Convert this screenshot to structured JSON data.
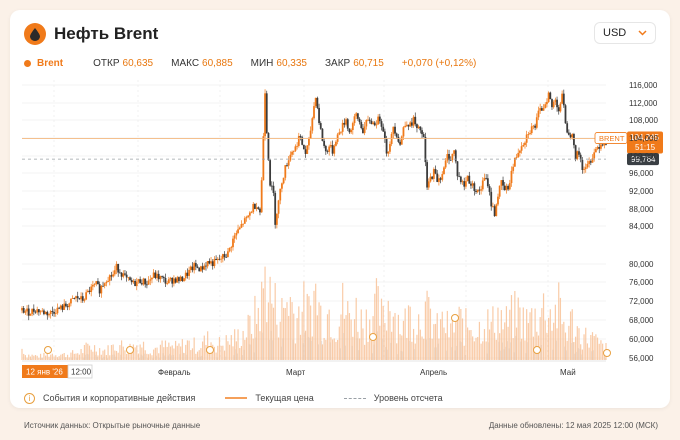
{
  "header": {
    "title": "Нефть Brent",
    "currency": "USD"
  },
  "stats": {
    "symbol": "Brent",
    "open_label": "ОТКР",
    "open_value": "60,635",
    "high_label": "МАКС",
    "high_value": "60,885",
    "low_label": "МИН",
    "low_value": "60,335",
    "close_label": "ЗАКР",
    "close_value": "60,715",
    "change": "+0,070 (+0,12%)"
  },
  "price_labels": {
    "series_name": "BRENT",
    "current_value": "104,245",
    "countdown": "51:15",
    "reference_value": "99,764"
  },
  "time_axis": {
    "selected_date": "12 янв '26",
    "selected_time": "12:00",
    "months": [
      "Февраль",
      "Март",
      "Апрель",
      "Май"
    ]
  },
  "legend": {
    "events": "События и корпоративные действия",
    "current_price": "Текущая цена",
    "reference_level": "Уровень отсчета"
  },
  "footer": {
    "source": "Источник данных: Открытые рыночные данные",
    "updated": "Данные обновлены: 12 мая 2025 12:00 (МСК)"
  },
  "colors": {
    "accent": "#f07a1a",
    "bull": "#f07a1a",
    "bear": "#3b3b3b",
    "volume": "#f7b98a",
    "reference": "#3a3f44"
  },
  "chart_data": {
    "type": "candlestick",
    "title": "Нефть Брент",
    "y_ticks": [
      "116,000",
      "112,000",
      "108,000",
      "104,000",
      "100,000",
      "96,000",
      "92,000",
      "88,000",
      "84,000",
      "80,000",
      "76,000",
      "72,000",
      "68,000",
      "60,000",
      "56,000"
    ],
    "y_range": [
      56,
      117
    ],
    "x_months": [
      "Февраль",
      "Март",
      "Апрель",
      "Май"
    ],
    "current_price": 104.245,
    "reference_level": 99.764,
    "close_path": [
      [
        0,
        66.8
      ],
      [
        4,
        66.4
      ],
      [
        8,
        67.0
      ],
      [
        12,
        66.5
      ],
      [
        16,
        66.1
      ],
      [
        20,
        66.9
      ],
      [
        24,
        67.4
      ],
      [
        28,
        68.3
      ],
      [
        32,
        69.6
      ],
      [
        36,
        69.1
      ],
      [
        40,
        71.2
      ],
      [
        44,
        72.4
      ],
      [
        46,
        71.3
      ],
      [
        50,
        73.8
      ],
      [
        54,
        74.6
      ],
      [
        56,
        76.2
      ],
      [
        58,
        75.4
      ],
      [
        62,
        73.5
      ],
      [
        66,
        72.6
      ],
      [
        70,
        73.3
      ],
      [
        74,
        72.8
      ],
      [
        78,
        74.4
      ],
      [
        82,
        73.9
      ],
      [
        86,
        72.9
      ],
      [
        90,
        73.6
      ],
      [
        94,
        73.4
      ],
      [
        98,
        74.8
      ],
      [
        102,
        76.4
      ],
      [
        106,
        75.8
      ],
      [
        110,
        77.3
      ],
      [
        113,
        77.1
      ],
      [
        116,
        77.6
      ],
      [
        119,
        78.4
      ],
      [
        122,
        79.2
      ],
      [
        125,
        82.2
      ],
      [
        127,
        83.6
      ],
      [
        129,
        84.6
      ],
      [
        131,
        86.0
      ],
      [
        133,
        86.6
      ],
      [
        135,
        88.0
      ],
      [
        137,
        89.4
      ],
      [
        139,
        90.0
      ],
      [
        141,
        88.3
      ],
      [
        142,
        95.0
      ],
      [
        143,
        105.0
      ],
      [
        144,
        114.8
      ],
      [
        145,
        106.0
      ],
      [
        147,
        94.5
      ],
      [
        149,
        92.0
      ],
      [
        150,
        86.2
      ],
      [
        152,
        90.5
      ],
      [
        154,
        95.0
      ],
      [
        156,
        97.8
      ],
      [
        158,
        100.0
      ],
      [
        160,
        101.6
      ],
      [
        162,
        102.2
      ],
      [
        164,
        104.6
      ],
      [
        166,
        103.0
      ],
      [
        168,
        101.0
      ],
      [
        170,
        103.5
      ],
      [
        172,
        108.8
      ],
      [
        174,
        113.8
      ],
      [
        176,
        108.0
      ],
      [
        178,
        104.0
      ],
      [
        180,
        101.3
      ],
      [
        182,
        102.6
      ],
      [
        184,
        101.5
      ],
      [
        186,
        104.2
      ],
      [
        188,
        105.5
      ],
      [
        190,
        107.0
      ],
      [
        192,
        108.5
      ],
      [
        194,
        105.5
      ],
      [
        196,
        107.5
      ],
      [
        198,
        109.3
      ],
      [
        200,
        107.8
      ],
      [
        202,
        106.0
      ],
      [
        204,
        107.5
      ],
      [
        206,
        108.3
      ],
      [
        208,
        107.5
      ],
      [
        210,
        107.9
      ],
      [
        212,
        108.6
      ],
      [
        214,
        106.5
      ],
      [
        216,
        101.5
      ],
      [
        218,
        102.5
      ],
      [
        220,
        107.0
      ],
      [
        222,
        105.2
      ],
      [
        224,
        103.0
      ],
      [
        226,
        106.5
      ],
      [
        228,
        108.0
      ],
      [
        230,
        107.0
      ],
      [
        232,
        108.5
      ],
      [
        234,
        106.0
      ],
      [
        236,
        106.2
      ],
      [
        238,
        104.0
      ],
      [
        240,
        93.5
      ],
      [
        242,
        95.5
      ],
      [
        244,
        97.0
      ],
      [
        246,
        95.3
      ],
      [
        248,
        96.0
      ],
      [
        250,
        97.5
      ],
      [
        252,
        100.5
      ],
      [
        254,
        100.0
      ],
      [
        256,
        101.5
      ],
      [
        258,
        96.5
      ],
      [
        260,
        95.0
      ],
      [
        262,
        94.0
      ],
      [
        264,
        96.0
      ],
      [
        266,
        94.2
      ],
      [
        268,
        93.6
      ],
      [
        270,
        92.5
      ],
      [
        272,
        93.5
      ],
      [
        274,
        95.5
      ],
      [
        276,
        94.5
      ],
      [
        278,
        90.0
      ],
      [
        280,
        88.0
      ],
      [
        282,
        92.0
      ],
      [
        284,
        94.5
      ],
      [
        286,
        93.0
      ],
      [
        288,
        93.5
      ],
      [
        290,
        97.0
      ],
      [
        292,
        99.5
      ],
      [
        294,
        101.5
      ],
      [
        296,
        103.0
      ],
      [
        298,
        104.0
      ],
      [
        300,
        105.8
      ],
      [
        302,
        106.5
      ],
      [
        304,
        107.0
      ],
      [
        306,
        109.6
      ],
      [
        308,
        110.8
      ],
      [
        310,
        112.0
      ],
      [
        312,
        114.0
      ],
      [
        314,
        111.0
      ],
      [
        316,
        113.0
      ],
      [
        318,
        110.5
      ],
      [
        320,
        113.5
      ],
      [
        322,
        108.0
      ],
      [
        324,
        104.5
      ],
      [
        326,
        106.0
      ],
      [
        328,
        100.5
      ],
      [
        330,
        101.0
      ],
      [
        332,
        98.0
      ],
      [
        334,
        97.5
      ],
      [
        336,
        99.0
      ],
      [
        338,
        100.5
      ],
      [
        340,
        102.0
      ],
      [
        342,
        102.8
      ],
      [
        344,
        103.4
      ],
      [
        346,
        103.6
      ]
    ],
    "volume_peaks": [
      [
        2,
        7
      ],
      [
        10,
        5
      ],
      [
        18,
        8
      ],
      [
        26,
        7
      ],
      [
        34,
        10
      ],
      [
        40,
        18
      ],
      [
        50,
        12
      ],
      [
        56,
        20
      ],
      [
        64,
        16
      ],
      [
        70,
        22
      ],
      [
        76,
        14
      ],
      [
        84,
        18
      ],
      [
        92,
        16
      ],
      [
        98,
        22
      ],
      [
        104,
        18
      ],
      [
        110,
        26
      ],
      [
        116,
        20
      ],
      [
        122,
        24
      ],
      [
        128,
        30
      ],
      [
        134,
        40
      ],
      [
        138,
        55
      ],
      [
        142,
        75
      ],
      [
        144,
        110
      ],
      [
        146,
        90
      ],
      [
        150,
        70
      ],
      [
        154,
        60
      ],
      [
        158,
        85
      ],
      [
        162,
        55
      ],
      [
        166,
        70
      ],
      [
        170,
        60
      ],
      [
        174,
        88
      ],
      [
        178,
        50
      ],
      [
        182,
        65
      ],
      [
        186,
        45
      ],
      [
        190,
        70
      ],
      [
        194,
        55
      ],
      [
        198,
        62
      ],
      [
        202,
        48
      ],
      [
        206,
        58
      ],
      [
        210,
        70
      ],
      [
        214,
        50
      ],
      [
        218,
        80
      ],
      [
        222,
        55
      ],
      [
        226,
        45
      ],
      [
        230,
        60
      ],
      [
        234,
        50
      ],
      [
        238,
        65
      ],
      [
        242,
        55
      ],
      [
        246,
        40
      ],
      [
        250,
        50
      ],
      [
        254,
        35
      ],
      [
        258,
        55
      ],
      [
        262,
        42
      ],
      [
        266,
        48
      ],
      [
        270,
        38
      ],
      [
        274,
        52
      ],
      [
        278,
        44
      ],
      [
        282,
        60
      ],
      [
        286,
        46
      ],
      [
        290,
        55
      ],
      [
        294,
        62
      ],
      [
        298,
        48
      ],
      [
        302,
        54
      ],
      [
        306,
        60
      ],
      [
        310,
        70
      ],
      [
        314,
        58
      ],
      [
        318,
        66
      ],
      [
        322,
        40
      ],
      [
        326,
        50
      ],
      [
        330,
        35
      ],
      [
        334,
        30
      ],
      [
        338,
        28
      ],
      [
        342,
        20
      ],
      [
        346,
        15
      ]
    ]
  }
}
